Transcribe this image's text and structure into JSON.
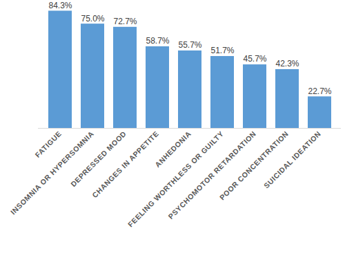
{
  "chart_data": {
    "type": "bar",
    "categories": [
      "FATIGUE",
      "INSOMNIA OR HYPERSOMNIA",
      "DEPRESSED MOOD",
      "CHANGES IN APPETITE",
      "ANHEDONIA",
      "FEELING WORTHLESS OR GUILTY",
      "PSYCHOMOTOR RETARDATION",
      "POOR CONCENTRATION",
      "SUICIDAL IDEATION"
    ],
    "values": [
      84.3,
      75.0,
      72.7,
      58.7,
      55.7,
      51.7,
      45.7,
      42.3,
      22.7
    ],
    "value_labels": [
      "84.3%",
      "75.0%",
      "72.7%",
      "58.7%",
      "55.7%",
      "51.7%",
      "45.7%",
      "42.3%",
      "22.7%"
    ],
    "color": "#5b9bd5",
    "ylim": [
      0,
      90
    ],
    "grid": false,
    "data_labels": true,
    "tick_labels": "x"
  }
}
